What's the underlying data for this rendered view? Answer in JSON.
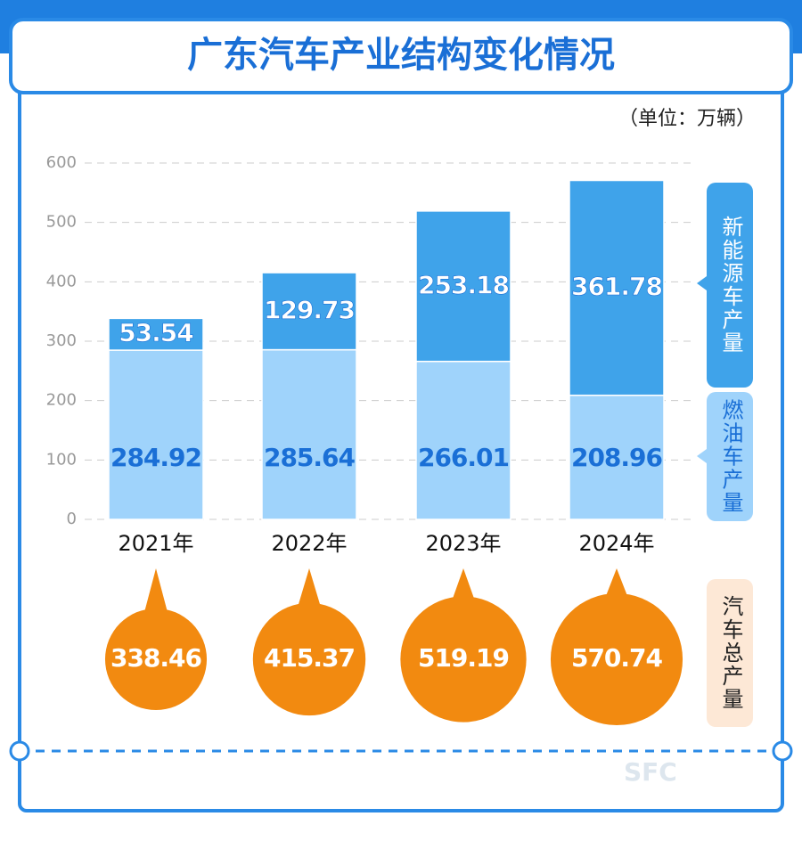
{
  "chart_data": {
    "type": "stacked_bar",
    "title": "广东汽车产业结构变化情况",
    "unit": "（单位：万辆）",
    "categories": [
      "2021年",
      "2022年",
      "2023年",
      "2024年"
    ],
    "series": [
      {
        "name": "燃油车产量",
        "color": "#9fd3fb",
        "values": [
          284.92,
          285.64,
          266.01,
          208.96
        ]
      },
      {
        "name": "新能源车产量",
        "color": "#3fa3ea",
        "values": [
          53.54,
          129.73,
          253.18,
          361.78
        ]
      }
    ],
    "totals": {
      "name": "汽车总产量",
      "color": "#f28a10",
      "values": [
        338.46,
        415.37,
        519.19,
        570.74
      ]
    },
    "ylim": [
      0,
      600
    ],
    "yticks": [
      0,
      100,
      200,
      300,
      400,
      500,
      600
    ],
    "grid": true,
    "watermark": "SFC"
  }
}
